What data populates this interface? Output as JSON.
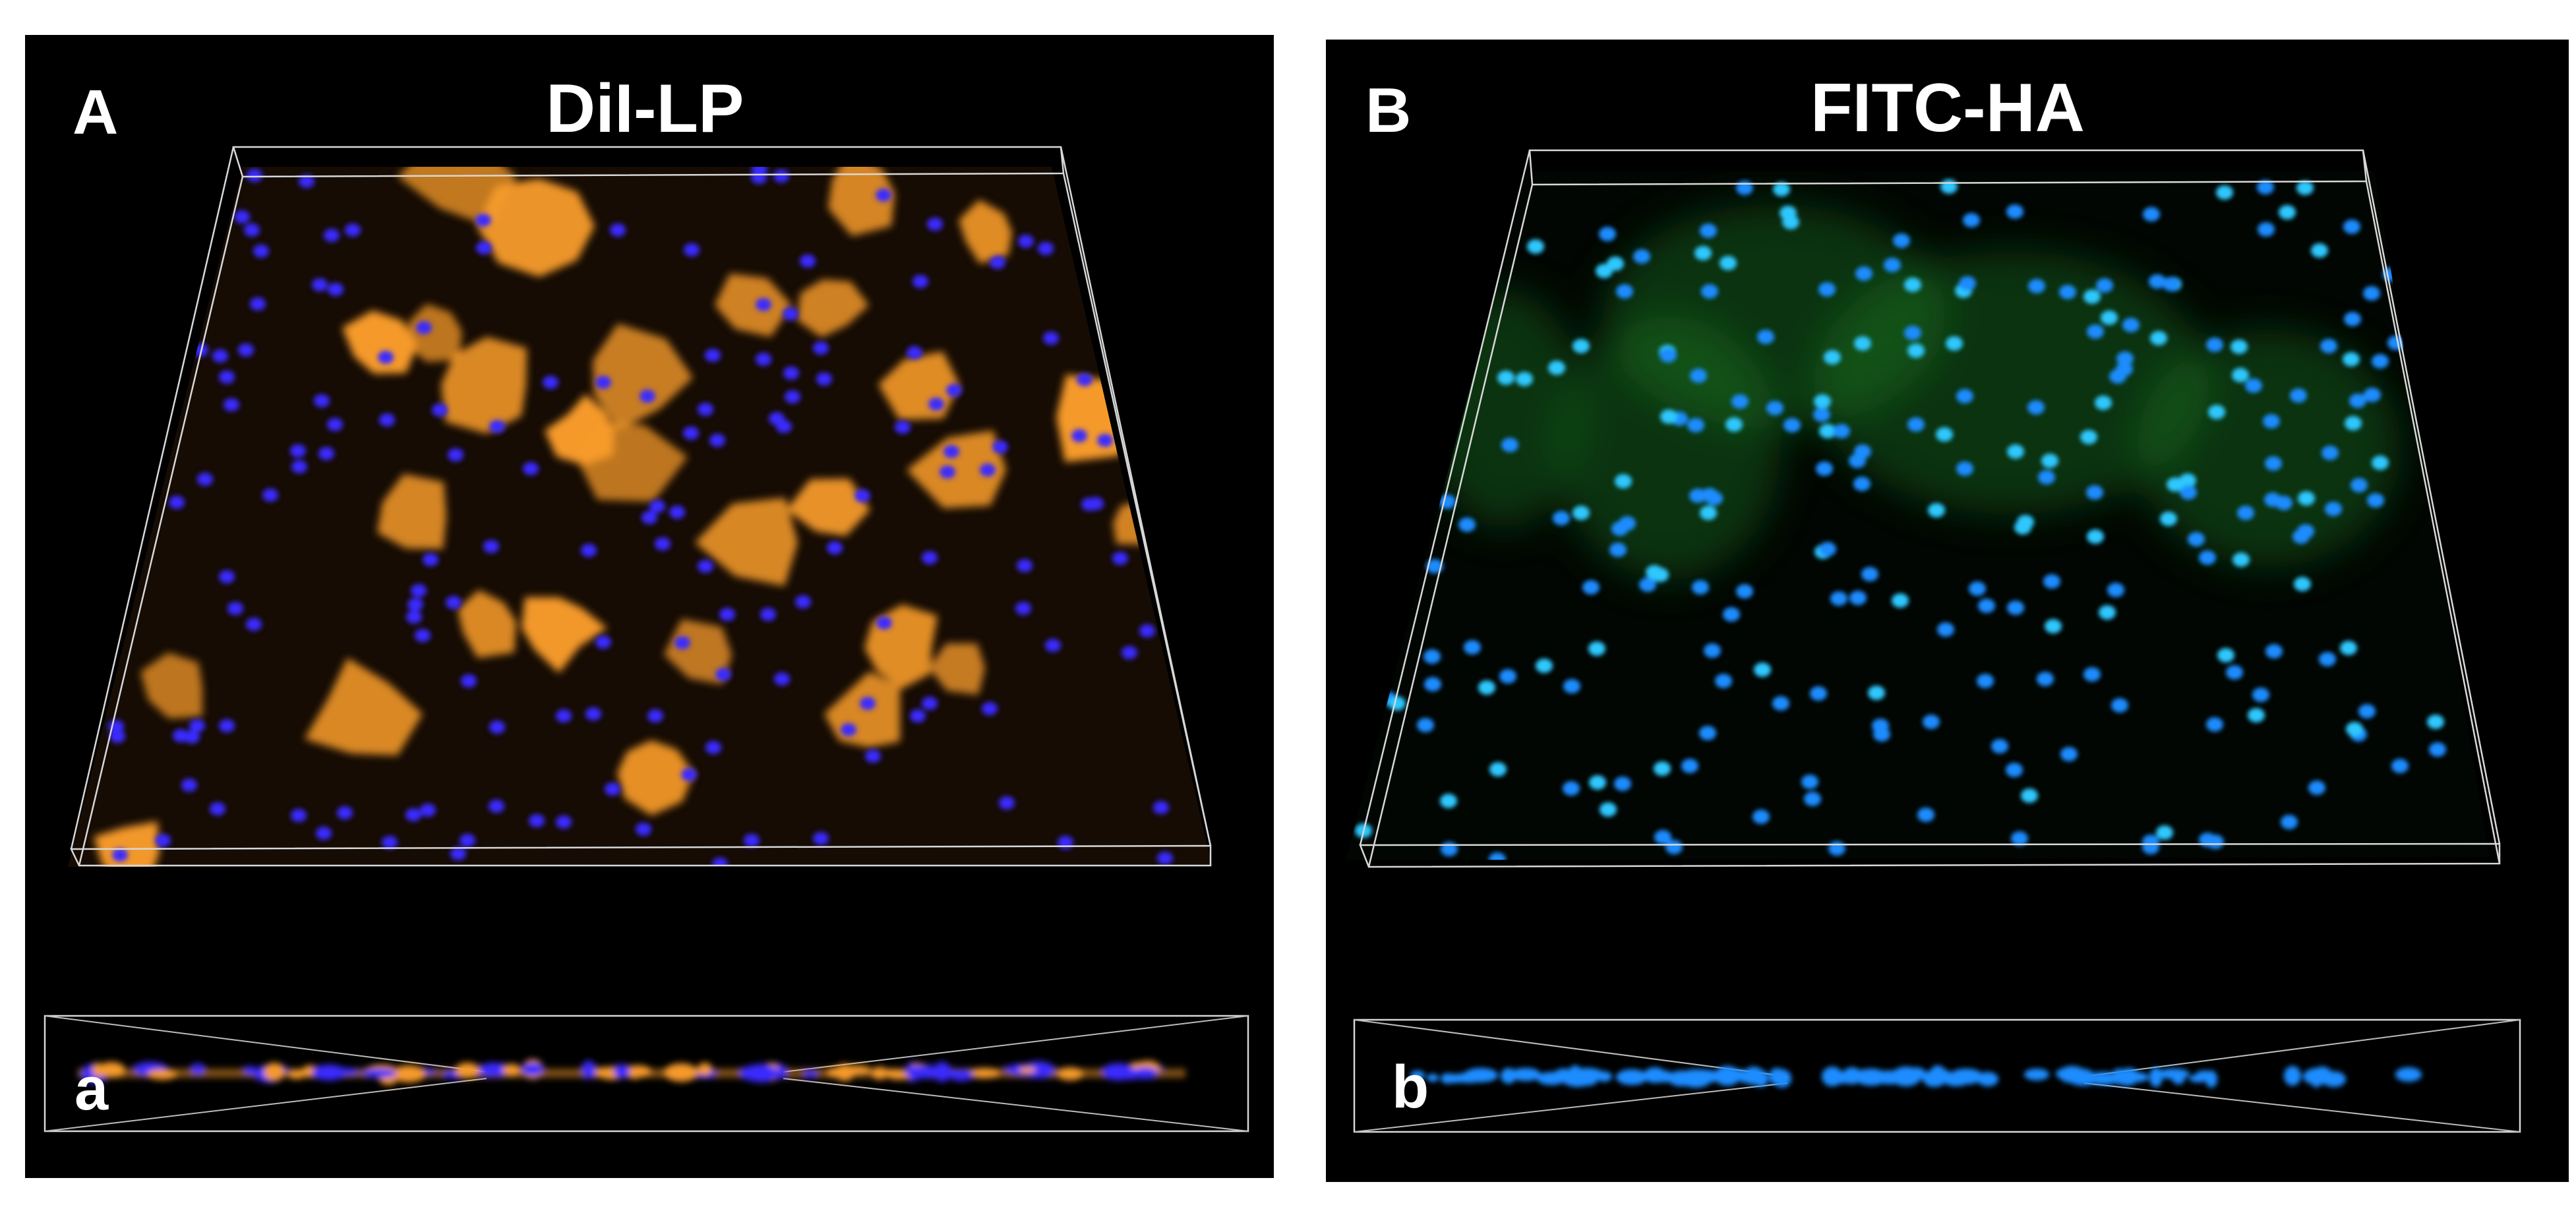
{
  "panels": [
    {
      "letter": "A",
      "title": "DiI-LP",
      "side_view_letter": "a",
      "stain_color": "#f59a2a",
      "nucleus_color": "#3a2cff"
    },
    {
      "letter": "B",
      "title": "FITC-HA",
      "side_view_letter": "b",
      "stain_color": "#1f8a2a",
      "nucleus_color": "#1a8cff"
    }
  ]
}
